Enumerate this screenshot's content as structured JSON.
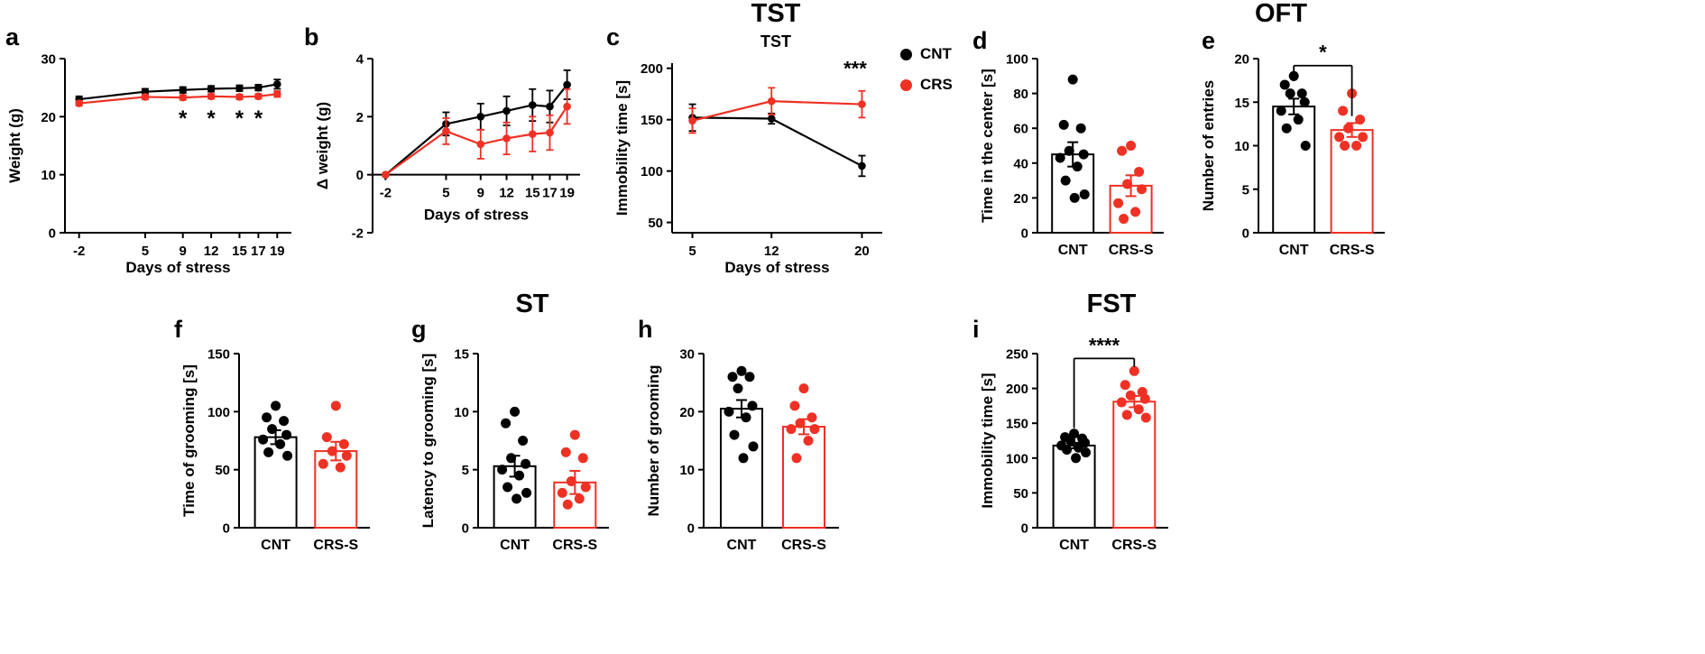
{
  "figure": {
    "background": "#ffffff",
    "colors": {
      "cnt": "#000000",
      "crs": "#EE3124"
    }
  },
  "section_titles": [
    {
      "id": "tst",
      "text": "TST"
    },
    {
      "id": "oft",
      "text": "OFT"
    },
    {
      "id": "st",
      "text": "ST"
    },
    {
      "id": "fst",
      "text": "FST"
    }
  ],
  "legend": {
    "items": [
      {
        "label": "CNT",
        "color": "#000000"
      },
      {
        "label": "CRS",
        "color": "#EE3124"
      }
    ]
  },
  "chart_data": [
    {
      "panel": "a",
      "letter": "a",
      "type": "line",
      "xlabel": "Days of stress",
      "ylabel": "Weight (g)",
      "xlim": [
        -3.5,
        20.5
      ],
      "ylim": [
        0,
        30
      ],
      "xticks": [
        -2,
        5,
        9,
        12,
        15,
        17,
        19
      ],
      "yticks": [
        0,
        10,
        20,
        30
      ],
      "series": [
        {
          "name": "CNT",
          "color": "#000000",
          "x": [
            -2,
            5,
            9,
            12,
            15,
            17,
            19
          ],
          "y": [
            23.0,
            24.3,
            24.6,
            24.8,
            24.9,
            25.0,
            25.6
          ],
          "sem": [
            0.5,
            0.5,
            0.5,
            0.5,
            0.5,
            0.5,
            0.8
          ]
        },
        {
          "name": "CRS",
          "color": "#EE3124",
          "x": [
            -2,
            5,
            9,
            12,
            15,
            17,
            19
          ],
          "y": [
            22.3,
            23.4,
            23.3,
            23.5,
            23.4,
            23.5,
            23.9
          ],
          "sem": [
            0.4,
            0.4,
            0.4,
            0.4,
            0.4,
            0.4,
            0.5
          ]
        }
      ],
      "sig_points": {
        "label": "*",
        "x": [
          9,
          12,
          15,
          17
        ],
        "y": 18.5
      }
    },
    {
      "panel": "b",
      "letter": "b",
      "type": "line",
      "xlabel": "Days of stress",
      "ylabel": "Δ weight (g)",
      "xlim": [
        -3.5,
        20.5
      ],
      "ylim": [
        -2,
        4
      ],
      "xaxis_at": 0,
      "xticks": [
        -2,
        5,
        9,
        12,
        15,
        17,
        19
      ],
      "yticks": [
        -2,
        0,
        2,
        4
      ],
      "series": [
        {
          "name": "CNT",
          "color": "#000000",
          "x": [
            -2,
            5,
            9,
            12,
            15,
            17,
            19
          ],
          "y": [
            0,
            1.75,
            2.0,
            2.2,
            2.4,
            2.35,
            3.1
          ],
          "sem": [
            0,
            0.4,
            0.45,
            0.5,
            0.55,
            0.55,
            0.5
          ]
        },
        {
          "name": "CRS",
          "color": "#EE3124",
          "x": [
            -2,
            5,
            9,
            12,
            15,
            17,
            19
          ],
          "y": [
            0,
            1.5,
            1.05,
            1.25,
            1.4,
            1.45,
            2.35
          ],
          "sem": [
            0,
            0.45,
            0.5,
            0.55,
            0.6,
            0.6,
            0.6
          ]
        }
      ]
    },
    {
      "panel": "c",
      "letter": "c",
      "type": "line",
      "title": "TST",
      "xlabel": "Days of stress",
      "ylabel": "Immobility time [s]",
      "xlim": [
        3.2,
        21.8
      ],
      "ylim": [
        40,
        205
      ],
      "xticks": [
        5,
        12,
        20
      ],
      "yticks": [
        50,
        100,
        150,
        200
      ],
      "series": [
        {
          "name": "CNT",
          "color": "#000000",
          "x": [
            5,
            12,
            20
          ],
          "y": [
            152,
            151,
            105
          ],
          "sem": [
            13,
            5,
            10
          ]
        },
        {
          "name": "CRS",
          "color": "#EE3124",
          "x": [
            5,
            12,
            20
          ],
          "y": [
            149,
            168,
            165
          ],
          "sem": [
            12,
            13,
            13
          ]
        }
      ],
      "sig_text": {
        "label": "***",
        "x": 19.4,
        "y": 193
      }
    },
    {
      "panel": "d",
      "letter": "d",
      "type": "bar",
      "ylabel": "Time in the center [s]",
      "ylim": [
        0,
        100
      ],
      "yticks": [
        0,
        20,
        40,
        60,
        80,
        100
      ],
      "categories": [
        "CNT",
        "CRS-S"
      ],
      "groups": [
        {
          "name": "CNT",
          "color": "#000000",
          "mean": 45,
          "sem": 7,
          "points": [
            88,
            62,
            60,
            47,
            45,
            43,
            38,
            30,
            22,
            20
          ]
        },
        {
          "name": "CRS-S",
          "color": "#EE3124",
          "mean": 27,
          "sem": 6,
          "points": [
            50,
            47,
            35,
            28,
            25,
            17,
            12,
            8
          ]
        }
      ]
    },
    {
      "panel": "e",
      "letter": "e",
      "type": "bar",
      "ylabel": "Number of entries",
      "ylim": [
        0,
        20
      ],
      "yticks": [
        0,
        5,
        10,
        15,
        20
      ],
      "categories": [
        "CNT",
        "CRS-S"
      ],
      "groups": [
        {
          "name": "CNT",
          "color": "#000000",
          "mean": 14.5,
          "sem": 0.9,
          "points": [
            18,
            17,
            16,
            16,
            15,
            14,
            13,
            12,
            10
          ]
        },
        {
          "name": "CRS-S",
          "color": "#EE3124",
          "mean": 11.8,
          "sem": 0.8,
          "points": [
            16,
            14,
            13,
            12,
            11,
            11,
            10,
            10
          ]
        }
      ],
      "sig": {
        "label": "*",
        "y": 19.2,
        "drop_left": 1.8,
        "drop_right": 5.8
      }
    },
    {
      "panel": "f",
      "letter": "f",
      "type": "bar",
      "ylabel": "Time of grooming [s]",
      "ylim": [
        0,
        150
      ],
      "yticks": [
        0,
        50,
        100,
        150
      ],
      "categories": [
        "CNT",
        "CRS-S"
      ],
      "groups": [
        {
          "name": "CNT",
          "color": "#000000",
          "mean": 78,
          "sem": 6,
          "points": [
            105,
            95,
            92,
            85,
            80,
            76,
            72,
            65,
            62
          ]
        },
        {
          "name": "CRS-S",
          "color": "#EE3124",
          "mean": 66,
          "sem": 8,
          "points": [
            105,
            78,
            72,
            66,
            62,
            55,
            52
          ]
        }
      ]
    },
    {
      "panel": "g",
      "letter": "g",
      "type": "bar",
      "ylabel": "Latency to grooming [s]",
      "ylim": [
        0,
        15
      ],
      "yticks": [
        0,
        5,
        10,
        15
      ],
      "categories": [
        "CNT",
        "CRS-S"
      ],
      "groups": [
        {
          "name": "CNT",
          "color": "#000000",
          "mean": 5.3,
          "sem": 0.9,
          "points": [
            10,
            9,
            7.5,
            6,
            5.5,
            5,
            4.5,
            3.5,
            3,
            2.5
          ]
        },
        {
          "name": "CRS-S",
          "color": "#EE3124",
          "mean": 3.9,
          "sem": 1.0,
          "points": [
            8,
            6.5,
            6,
            4,
            3.5,
            3,
            2.5,
            2
          ]
        }
      ]
    },
    {
      "panel": "h",
      "letter": "h",
      "type": "bar",
      "ylabel": "Number of grooming",
      "ylim": [
        0,
        30
      ],
      "yticks": [
        0,
        10,
        20,
        30
      ],
      "categories": [
        "CNT",
        "CRS-S"
      ],
      "groups": [
        {
          "name": "CNT",
          "color": "#000000",
          "mean": 20.5,
          "sem": 1.5,
          "points": [
            27,
            26,
            26,
            24,
            21,
            20,
            19,
            16,
            14,
            12
          ]
        },
        {
          "name": "CRS-S",
          "color": "#EE3124",
          "mean": 17.4,
          "sem": 1.3,
          "points": [
            24,
            21,
            19,
            18,
            17,
            17,
            15,
            12
          ]
        }
      ]
    },
    {
      "panel": "i",
      "letter": "i",
      "type": "bar",
      "ylabel": "Immobility time [s]",
      "ylim": [
        0,
        250
      ],
      "yticks": [
        0,
        50,
        100,
        150,
        200,
        250
      ],
      "categories": [
        "CNT",
        "CRS-S"
      ],
      "groups": [
        {
          "name": "CNT",
          "color": "#000000",
          "mean": 118,
          "sem": 4,
          "points": [
            135,
            130,
            128,
            125,
            122,
            118,
            115,
            112,
            108,
            100
          ]
        },
        {
          "name": "CRS-S",
          "color": "#EE3124",
          "mean": 181,
          "sem": 8,
          "points": [
            225,
            205,
            195,
            190,
            185,
            180,
            170,
            162,
            158
          ]
        }
      ],
      "sig": {
        "label": "****",
        "y": 243,
        "drop_left": 100,
        "drop_right": 12
      }
    }
  ]
}
